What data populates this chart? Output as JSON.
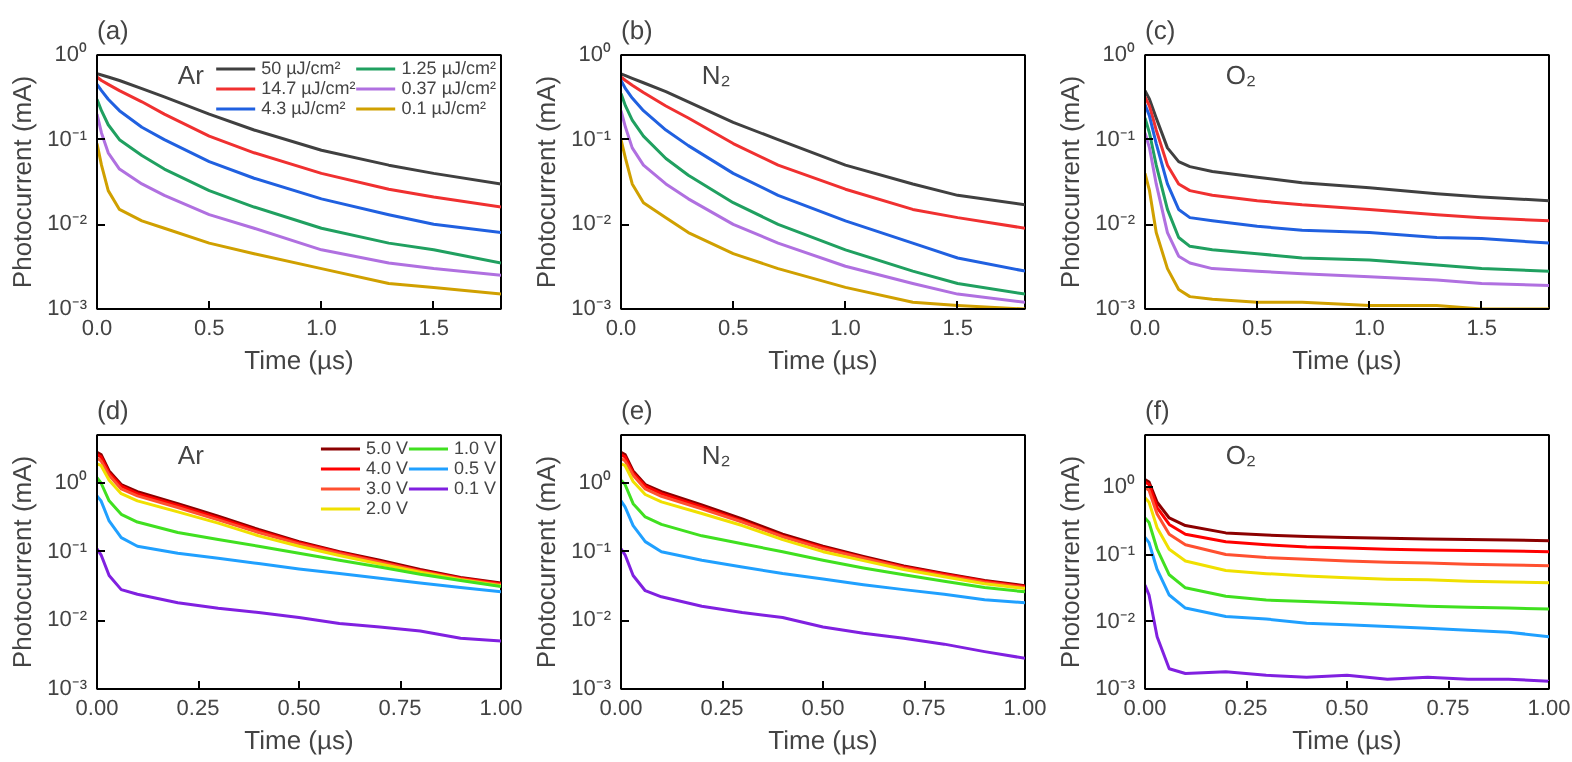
{
  "chart_data": [
    {
      "type": "line",
      "title": "(a)",
      "annotations": [
        "Ar"
      ],
      "xlabel": "Time (µs)",
      "ylabel": "Photocurrent (mA)",
      "log": "y",
      "legend": "top right",
      "grid": false,
      "x": [
        0,
        0.02,
        0.05,
        0.1,
        0.2,
        0.3,
        0.5,
        0.7,
        1.0,
        1.3,
        1.5,
        1.8
      ],
      "xlim": [
        0,
        1.8
      ],
      "xticks": [
        {
          "value": 0,
          "label": "0.0"
        },
        0.5,
        {
          "value": 1,
          "label": "1.0"
        },
        1.5
      ],
      "ylim": [
        0.001,
        1
      ],
      "yticks": [
        {
          "value": 0.001,
          "label": "10⁻³"
        },
        {
          "value": 0.01,
          "label": "10⁻²"
        },
        {
          "value": 0.1,
          "label": "10⁻¹"
        },
        {
          "value": 1,
          "label": "10⁰"
        }
      ],
      "series": [
        {
          "name": "50 µJ/cm²",
          "color": "#404040",
          "values": [
            0.6,
            0.58,
            0.55,
            0.5,
            0.4,
            0.32,
            0.2,
            0.13,
            0.075,
            0.05,
            0.04,
            0.03
          ]
        },
        {
          "name": "14.7 µJ/cm²",
          "color": "#f03030",
          "values": [
            0.55,
            0.5,
            0.45,
            0.38,
            0.28,
            0.2,
            0.11,
            0.07,
            0.04,
            0.026,
            0.021,
            0.016
          ]
        },
        {
          "name": "4.3 µJ/cm²",
          "color": "#2060e0",
          "values": [
            0.45,
            0.38,
            0.3,
            0.22,
            0.14,
            0.1,
            0.055,
            0.035,
            0.02,
            0.013,
            0.01,
            0.008
          ]
        },
        {
          "name": "1.25 µJ/cm²",
          "color": "#20a060",
          "values": [
            0.3,
            0.22,
            0.15,
            0.1,
            0.065,
            0.045,
            0.025,
            0.016,
            0.009,
            0.006,
            0.005,
            0.0035
          ]
        },
        {
          "name": "0.37 µJ/cm²",
          "color": "#b070e0",
          "values": [
            0.2,
            0.12,
            0.07,
            0.045,
            0.03,
            0.022,
            0.013,
            0.009,
            0.005,
            0.0035,
            0.003,
            0.0025
          ]
        },
        {
          "name": "0.1 µJ/cm²",
          "color": "#d0a000",
          "values": [
            0.09,
            0.05,
            0.025,
            0.015,
            0.011,
            0.009,
            0.006,
            0.0045,
            0.003,
            0.002,
            0.0018,
            0.0015
          ]
        }
      ]
    },
    {
      "type": "line",
      "title": "(b)",
      "annotations": [
        "N₂"
      ],
      "xlabel": "Time (µs)",
      "ylabel": "Photocurrent (mA)",
      "log": "y",
      "grid": false,
      "x": [
        0,
        0.02,
        0.05,
        0.1,
        0.2,
        0.3,
        0.5,
        0.7,
        1.0,
        1.3,
        1.5,
        1.8
      ],
      "xlim": [
        0,
        1.8
      ],
      "xticks": [
        {
          "value": 0,
          "label": "0.0"
        },
        0.5,
        {
          "value": 1,
          "label": "1.0"
        },
        1.5
      ],
      "ylim": [
        0.001,
        1
      ],
      "yticks": [
        {
          "value": 0.001,
          "label": "10⁻³"
        },
        {
          "value": 0.01,
          "label": "10⁻²"
        },
        {
          "value": 0.1,
          "label": "10⁻¹"
        },
        {
          "value": 1,
          "label": "10⁰"
        }
      ],
      "series": [
        {
          "color": "#404040",
          "values": [
            0.6,
            0.57,
            0.53,
            0.47,
            0.37,
            0.28,
            0.16,
            0.1,
            0.05,
            0.03,
            0.022,
            0.017
          ]
        },
        {
          "color": "#f03030",
          "values": [
            0.55,
            0.5,
            0.44,
            0.36,
            0.25,
            0.18,
            0.09,
            0.05,
            0.026,
            0.015,
            0.012,
            0.009
          ]
        },
        {
          "color": "#2060e0",
          "values": [
            0.5,
            0.4,
            0.31,
            0.22,
            0.13,
            0.085,
            0.04,
            0.022,
            0.011,
            0.006,
            0.004,
            0.0028
          ]
        },
        {
          "color": "#20a060",
          "values": [
            0.35,
            0.25,
            0.17,
            0.11,
            0.06,
            0.038,
            0.018,
            0.01,
            0.005,
            0.0028,
            0.002,
            0.0015
          ]
        },
        {
          "color": "#b070e0",
          "values": [
            0.22,
            0.14,
            0.08,
            0.05,
            0.03,
            0.02,
            0.01,
            0.006,
            0.0032,
            0.002,
            0.0015,
            0.0012
          ]
        },
        {
          "color": "#d0a000",
          "values": [
            0.1,
            0.06,
            0.03,
            0.018,
            0.012,
            0.008,
            0.0045,
            0.003,
            0.0018,
            0.0012,
            0.0011,
            0.001
          ]
        }
      ]
    },
    {
      "type": "line",
      "title": "(c)",
      "annotations": [
        "O₂"
      ],
      "xlabel": "Time (µs)",
      "ylabel": "Photocurrent (mA)",
      "log": "y",
      "grid": false,
      "x": [
        0,
        0.02,
        0.05,
        0.1,
        0.15,
        0.2,
        0.3,
        0.5,
        0.7,
        1.0,
        1.3,
        1.5,
        1.8
      ],
      "xlim": [
        0,
        1.8
      ],
      "xticks": [
        {
          "value": 0,
          "label": "0.0"
        },
        0.5,
        {
          "value": 1,
          "label": "1.0"
        },
        1.5
      ],
      "ylim": [
        0.001,
        1
      ],
      "yticks": [
        {
          "value": 0.001,
          "label": "10⁻³"
        },
        {
          "value": 0.01,
          "label": "10⁻²"
        },
        {
          "value": 0.1,
          "label": "10⁻¹"
        },
        {
          "value": 1,
          "label": "10⁰"
        }
      ],
      "series": [
        {
          "color": "#404040",
          "values": [
            0.38,
            0.3,
            0.18,
            0.08,
            0.055,
            0.048,
            0.042,
            0.036,
            0.031,
            0.027,
            0.023,
            0.021,
            0.019
          ]
        },
        {
          "color": "#f03030",
          "values": [
            0.32,
            0.25,
            0.13,
            0.05,
            0.03,
            0.025,
            0.022,
            0.019,
            0.017,
            0.015,
            0.013,
            0.012,
            0.011
          ]
        },
        {
          "color": "#2060e0",
          "values": [
            0.26,
            0.19,
            0.09,
            0.03,
            0.015,
            0.012,
            0.011,
            0.0095,
            0.0085,
            0.008,
            0.007,
            0.0068,
            0.006
          ]
        },
        {
          "color": "#20a060",
          "values": [
            0.18,
            0.12,
            0.05,
            0.015,
            0.007,
            0.0055,
            0.005,
            0.0045,
            0.004,
            0.0038,
            0.0033,
            0.003,
            0.0028
          ]
        },
        {
          "color": "#b070e0",
          "values": [
            0.12,
            0.08,
            0.03,
            0.008,
            0.0042,
            0.0035,
            0.003,
            0.0028,
            0.0026,
            0.0024,
            0.0022,
            0.002,
            0.0019
          ]
        },
        {
          "color": "#d0a000",
          "values": [
            0.04,
            0.025,
            0.008,
            0.003,
            0.0017,
            0.0014,
            0.0013,
            0.0012,
            0.0012,
            0.0011,
            0.0011,
            0.001,
            0.001
          ]
        }
      ]
    },
    {
      "type": "line",
      "title": "(d)",
      "annotations": [
        "Ar"
      ],
      "xlabel": "Time (µs)",
      "ylabel": "Photocurrent (mA)",
      "log": "y",
      "legend": "top right",
      "grid": false,
      "x": [
        0,
        0.01,
        0.03,
        0.06,
        0.1,
        0.2,
        0.3,
        0.4,
        0.5,
        0.6,
        0.7,
        0.8,
        0.9,
        1.0
      ],
      "xlim": [
        0,
        1
      ],
      "xticks": [
        {
          "value": 0,
          "label": "0.00"
        },
        0.25,
        {
          "value": 0.5,
          "label": "0.50"
        },
        0.75,
        {
          "value": 1,
          "label": "1.00"
        }
      ],
      "ylim": [
        0.001,
        5
      ],
      "yticks": [
        {
          "value": 0.001,
          "label": "10⁻³"
        },
        {
          "value": 0.01,
          "label": "10⁻²"
        },
        {
          "value": 0.1,
          "label": "10⁻¹"
        },
        {
          "value": 1,
          "label": "10⁰"
        }
      ],
      "series": [
        {
          "name": "5.0 V",
          "color": "#8b0000",
          "values": [
            2.8,
            2.6,
            1.5,
            0.95,
            0.75,
            0.5,
            0.33,
            0.21,
            0.14,
            0.1,
            0.075,
            0.055,
            0.042,
            0.035
          ]
        },
        {
          "name": "4.0 V",
          "color": "#ff0000",
          "values": [
            2.6,
            2.4,
            1.4,
            0.9,
            0.7,
            0.47,
            0.31,
            0.2,
            0.135,
            0.097,
            0.072,
            0.053,
            0.041,
            0.034
          ]
        },
        {
          "name": "3.0 V",
          "color": "#ff5030",
          "values": [
            2.3,
            2.1,
            1.3,
            0.82,
            0.65,
            0.44,
            0.29,
            0.19,
            0.13,
            0.094,
            0.07,
            0.052,
            0.04,
            0.033
          ]
        },
        {
          "name": "2.0 V",
          "color": "#f0e000",
          "values": [
            1.9,
            1.8,
            1.1,
            0.7,
            0.55,
            0.38,
            0.26,
            0.17,
            0.12,
            0.088,
            0.066,
            0.05,
            0.039,
            0.032
          ]
        },
        {
          "name": "1.0 V",
          "color": "#40e020",
          "values": [
            1.2,
            1.0,
            0.55,
            0.35,
            0.27,
            0.19,
            0.15,
            0.12,
            0.095,
            0.075,
            0.06,
            0.047,
            0.038,
            0.031
          ]
        },
        {
          "name": "0.5 V",
          "color": "#20a0ff",
          "values": [
            0.65,
            0.55,
            0.28,
            0.16,
            0.12,
            0.095,
            0.08,
            0.067,
            0.056,
            0.048,
            0.041,
            0.035,
            0.03,
            0.026
          ]
        },
        {
          "name": "0.1 V",
          "color": "#8020e0",
          "values": [
            0.11,
            0.09,
            0.045,
            0.028,
            0.024,
            0.018,
            0.015,
            0.013,
            0.011,
            0.009,
            0.008,
            0.007,
            0.0055,
            0.005
          ]
        }
      ]
    },
    {
      "type": "line",
      "title": "(e)",
      "annotations": [
        "N₂"
      ],
      "xlabel": "Time (µs)",
      "ylabel": "Photocurrent (mA)",
      "log": "y",
      "grid": false,
      "x": [
        0,
        0.01,
        0.03,
        0.06,
        0.1,
        0.2,
        0.3,
        0.4,
        0.5,
        0.6,
        0.7,
        0.8,
        0.9,
        1.0
      ],
      "xlim": [
        0,
        1
      ],
      "xticks": [
        {
          "value": 0,
          "label": "0.00"
        },
        0.25,
        {
          "value": 0.5,
          "label": "0.50"
        },
        0.75,
        {
          "value": 1,
          "label": "1.00"
        }
      ],
      "ylim": [
        0.001,
        5
      ],
      "yticks": [
        {
          "value": 0.001,
          "label": "10⁻³"
        },
        {
          "value": 0.01,
          "label": "10⁻²"
        },
        {
          "value": 0.1,
          "label": "10⁻¹"
        },
        {
          "value": 1,
          "label": "10⁰"
        }
      ],
      "series": [
        {
          "color": "#8b0000",
          "values": [
            2.8,
            2.6,
            1.5,
            0.95,
            0.75,
            0.48,
            0.3,
            0.18,
            0.12,
            0.085,
            0.062,
            0.048,
            0.038,
            0.032
          ]
        },
        {
          "color": "#ff0000",
          "values": [
            2.6,
            2.4,
            1.4,
            0.9,
            0.7,
            0.45,
            0.28,
            0.17,
            0.115,
            0.082,
            0.06,
            0.047,
            0.037,
            0.031
          ]
        },
        {
          "color": "#ff5030",
          "values": [
            2.3,
            2.1,
            1.3,
            0.82,
            0.64,
            0.42,
            0.27,
            0.165,
            0.11,
            0.08,
            0.058,
            0.045,
            0.036,
            0.03
          ]
        },
        {
          "color": "#f0e000",
          "values": [
            1.9,
            1.8,
            1.05,
            0.68,
            0.53,
            0.36,
            0.24,
            0.15,
            0.1,
            0.074,
            0.055,
            0.043,
            0.034,
            0.029
          ]
        },
        {
          "color": "#40e020",
          "values": [
            1.1,
            0.95,
            0.5,
            0.32,
            0.25,
            0.17,
            0.13,
            0.1,
            0.075,
            0.058,
            0.046,
            0.037,
            0.03,
            0.026
          ]
        },
        {
          "color": "#20a0ff",
          "values": [
            0.55,
            0.45,
            0.24,
            0.14,
            0.1,
            0.075,
            0.06,
            0.048,
            0.04,
            0.033,
            0.028,
            0.024,
            0.02,
            0.018
          ]
        },
        {
          "color": "#8020e0",
          "values": [
            0.11,
            0.09,
            0.045,
            0.027,
            0.022,
            0.016,
            0.013,
            0.011,
            0.008,
            0.0065,
            0.0055,
            0.0045,
            0.0035,
            0.0028
          ]
        }
      ]
    },
    {
      "type": "line",
      "title": "(f)",
      "annotations": [
        "O₂"
      ],
      "xlabel": "Time (µs)",
      "ylabel": "Photocurrent (mA)",
      "log": "y",
      "grid": false,
      "x": [
        0,
        0.01,
        0.03,
        0.06,
        0.1,
        0.2,
        0.3,
        0.4,
        0.5,
        0.6,
        0.7,
        0.8,
        0.9,
        1.0
      ],
      "xlim": [
        0,
        1
      ],
      "xticks": [
        {
          "value": 0,
          "label": "0.00"
        },
        0.25,
        {
          "value": 0.5,
          "label": "0.50"
        },
        0.75,
        {
          "value": 1,
          "label": "1.00"
        }
      ],
      "ylim": [
        0.001,
        6
      ],
      "yticks": [
        {
          "value": 0.001,
          "label": "10⁻³"
        },
        {
          "value": 0.01,
          "label": "10⁻²"
        },
        {
          "value": 0.1,
          "label": "10⁻¹"
        },
        {
          "value": 1,
          "label": "10⁰"
        }
      ],
      "series": [
        {
          "color": "#8b0000",
          "values": [
            1.3,
            1.2,
            0.6,
            0.35,
            0.27,
            0.21,
            0.195,
            0.185,
            0.18,
            0.175,
            0.17,
            0.168,
            0.165,
            0.16
          ]
        },
        {
          "color": "#ff0000",
          "values": [
            1.2,
            1.1,
            0.5,
            0.28,
            0.2,
            0.155,
            0.14,
            0.13,
            0.125,
            0.12,
            0.117,
            0.115,
            0.113,
            0.11
          ]
        },
        {
          "color": "#ff5030",
          "values": [
            1.0,
            0.9,
            0.4,
            0.2,
            0.14,
            0.1,
            0.09,
            0.085,
            0.08,
            0.077,
            0.075,
            0.072,
            0.07,
            0.068
          ]
        },
        {
          "color": "#f0e000",
          "values": [
            0.7,
            0.6,
            0.25,
            0.12,
            0.08,
            0.058,
            0.052,
            0.048,
            0.045,
            0.043,
            0.042,
            0.04,
            0.039,
            0.038
          ]
        },
        {
          "color": "#40e020",
          "values": [
            0.35,
            0.3,
            0.12,
            0.05,
            0.032,
            0.024,
            0.021,
            0.02,
            0.019,
            0.018,
            0.017,
            0.0165,
            0.016,
            0.0155
          ]
        },
        {
          "color": "#20a0ff",
          "values": [
            0.18,
            0.15,
            0.06,
            0.025,
            0.016,
            0.012,
            0.011,
            0.0095,
            0.009,
            0.0085,
            0.008,
            0.0075,
            0.007,
            0.006
          ]
        },
        {
          "color": "#8020e0",
          "values": [
            0.035,
            0.025,
            0.006,
            0.002,
            0.0017,
            0.0018,
            0.0016,
            0.0015,
            0.0016,
            0.0014,
            0.0015,
            0.0014,
            0.0014,
            0.0013
          ]
        }
      ]
    }
  ]
}
